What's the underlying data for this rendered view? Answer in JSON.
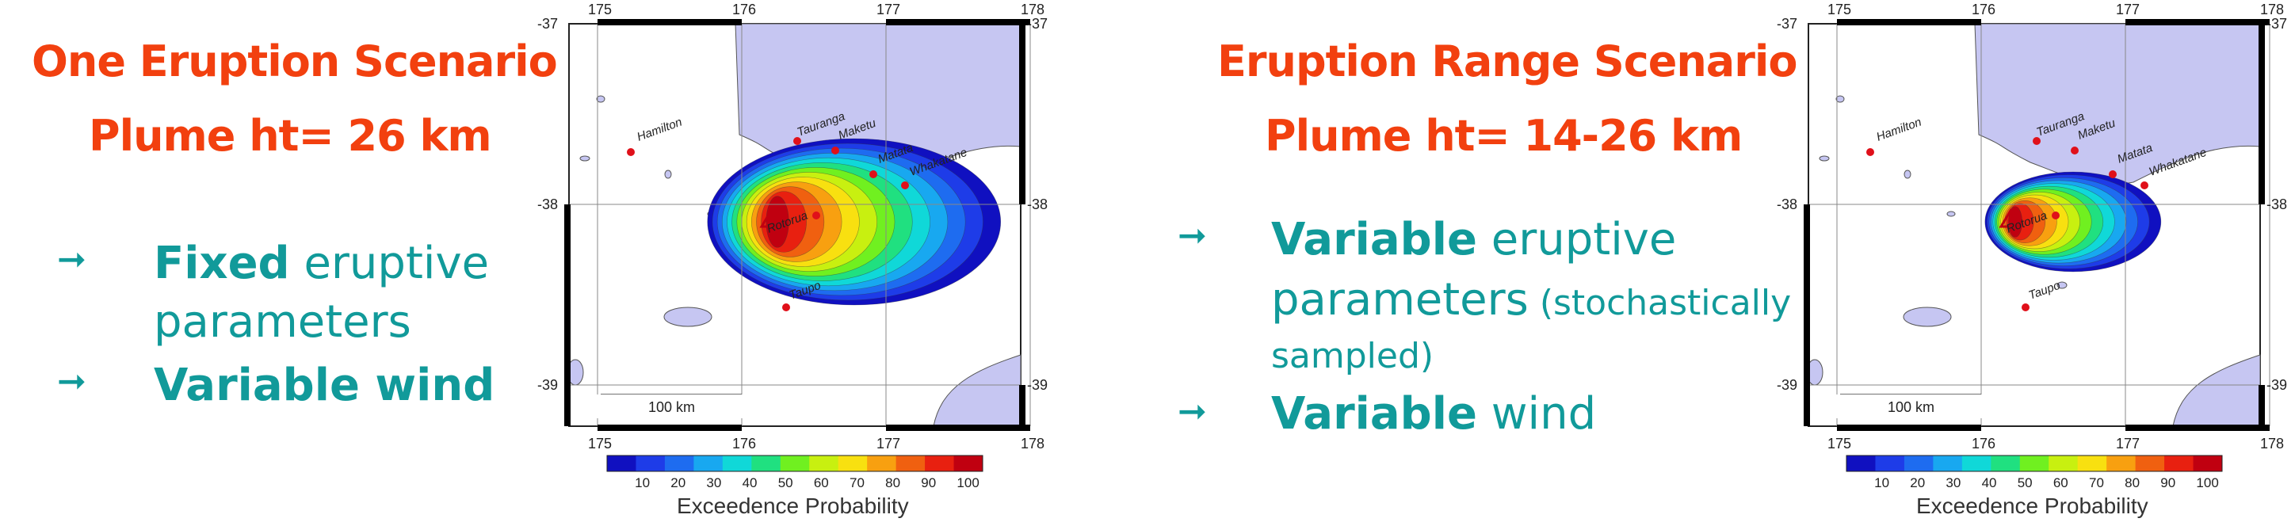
{
  "left": {
    "title": "One Eruption Scenario",
    "subtitle": "Plume ht= 26 km",
    "bullet1_bold": "Fixed",
    "bullet1_rest": " eruptive",
    "bullet1_line2": "parameters",
    "bullet2_bold": "Variable wind",
    "arrow": "➞"
  },
  "right": {
    "title": "Eruption Range Scenario",
    "subtitle": "Plume ht= 14-26 km",
    "bullet1_bold": "Variable",
    "bullet1_rest": " eruptive",
    "bullet1_line2": "parameters",
    "bullet1_paren": " (stochastically",
    "bullet1_line3": "sampled)",
    "bullet2_bold": "Variable",
    "bullet2_rest": " wind",
    "arrow": "➞"
  },
  "map": {
    "x_ticks": [
      "175",
      "176",
      "177",
      "178"
    ],
    "y_ticks": [
      "-37",
      "-38",
      "-39"
    ],
    "towns": [
      "Hamilton",
      "Tauranga",
      "Maketu",
      "Matata",
      "Whakatane",
      "Rotorua",
      "Taupo"
    ],
    "scalebar": "100 km",
    "colorbar_ticks": [
      "10",
      "20",
      "30",
      "40",
      "50",
      "60",
      "70",
      "80",
      "90",
      "100"
    ],
    "colorbar_label": "Exceedence Probability",
    "colors": [
      "#1010c0",
      "#1e3ce8",
      "#1e6cf0",
      "#18a8f0",
      "#10d8d8",
      "#20e080",
      "#70f020",
      "#c8f010",
      "#f8e010",
      "#f8a010",
      "#f06010",
      "#e82010",
      "#c00010"
    ]
  }
}
